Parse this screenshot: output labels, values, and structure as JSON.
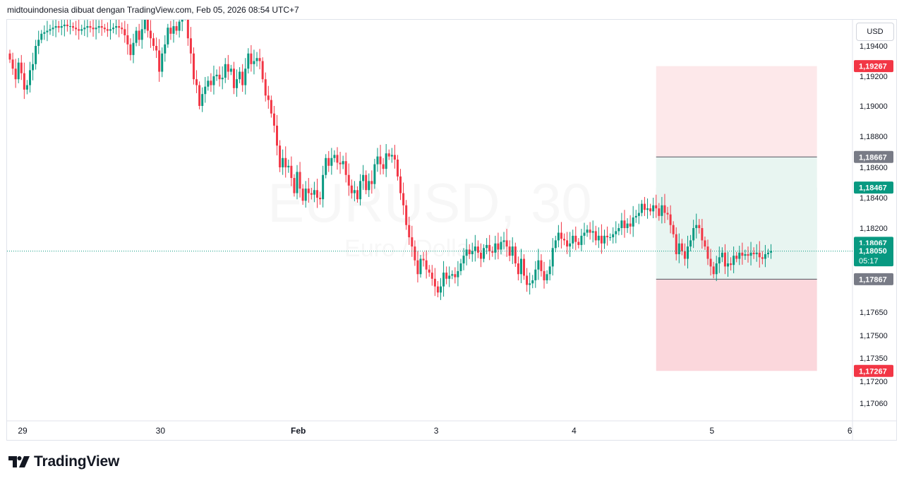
{
  "header": {
    "attribution": "midtouindonesia dibuat dengan TradingView.com, Feb 05, 2026 08:54 UTC+7"
  },
  "currency": "USD",
  "brand": {
    "name": "TradingView"
  },
  "colors": {
    "up": "#089981",
    "down": "#f23645",
    "grid": "#f0f3fa",
    "axis_text": "#131722"
  },
  "chart_data": {
    "type": "candlestick",
    "symbol": "EURUSD, 30",
    "watermark": {
      "title": "EURUSD, 30",
      "subtitle": "Euro / Dollar AS"
    },
    "y_axis": {
      "ticks": [
        1.194,
        1.192,
        1.19,
        1.188,
        1.186,
        1.184,
        1.182,
        1.1765,
        1.175,
        1.1735,
        1.172,
        1.1706
      ],
      "tick_labels": [
        "1,19400",
        "1,19200",
        "1,19000",
        "1,18800",
        "1,18600",
        "1,18400",
        "1,18200",
        "1,17650",
        "1,17500",
        "1,17350",
        "1,17200",
        "1,17060"
      ]
    },
    "x_axis": {
      "tick_labels": [
        "29",
        "30",
        "Feb",
        "3",
        "4",
        "5",
        "6"
      ],
      "tick_index": [
        0,
        48,
        96,
        144,
        192,
        240,
        288
      ]
    },
    "price_labels": [
      {
        "text": "1,19267",
        "value": 1.19267,
        "color": "#f23645"
      },
      {
        "text": "1,18667",
        "value": 1.18667,
        "color": "#787b86"
      },
      {
        "text": "1,18467",
        "value": 1.18467,
        "color": "#089981"
      },
      {
        "text": "1,18067",
        "value": 1.18067,
        "color": "#089981"
      },
      {
        "text": "1,18050",
        "value": 1.1805,
        "color": "#089981",
        "extra": "05:17"
      },
      {
        "text": "1,17867",
        "value": 1.17867,
        "color": "#787b86"
      },
      {
        "text": "1,17267",
        "value": 1.17267,
        "color": "#f23645"
      }
    ],
    "last_price": 1.1805,
    "countdown": "05:17",
    "zones": [
      {
        "name": "take-profit-2",
        "from": 1.18667,
        "to": 1.19267,
        "from_index": 225,
        "to_index": 281,
        "color": "#fde8ea"
      },
      {
        "name": "take-profit-1",
        "from": 1.18067,
        "to": 1.18467,
        "from_index": 225,
        "to_index": 281,
        "color": "#d3ede6"
      },
      {
        "name": "entry-band",
        "from": 1.17867,
        "to": 1.18667,
        "from_index": 225,
        "to_index": 281,
        "color": "#e8f5f1"
      },
      {
        "name": "stop-loss",
        "from": 1.17267,
        "to": 1.17867,
        "from_index": 225,
        "to_index": 281,
        "color": "#fbd7dc"
      }
    ],
    "levels": [
      {
        "value": 1.18667,
        "from_index": 225,
        "to_index": 281
      },
      {
        "value": 1.17867,
        "from_index": 225,
        "to_index": 281
      }
    ],
    "close": [
      1.1931,
      1.1925,
      1.1918,
      1.1929,
      1.1922,
      1.1911,
      1.1914,
      1.1924,
      1.1928,
      1.194,
      1.1944,
      1.1948,
      1.1949,
      1.195,
      1.1951,
      1.1952,
      1.1953,
      1.1952,
      1.1953,
      1.1954,
      1.1953,
      1.1953,
      1.1952,
      1.1951,
      1.195,
      1.1951,
      1.1952,
      1.1953,
      1.1952,
      1.1951,
      1.1952,
      1.1953,
      1.1952,
      1.1951,
      1.195,
      1.1951,
      1.1952,
      1.1953,
      1.1952,
      1.1951,
      1.1947,
      1.1941,
      1.1934,
      1.1942,
      1.195,
      1.1944,
      1.1951,
      1.1958,
      1.195,
      1.1945,
      1.194,
      1.1937,
      1.1923,
      1.1935,
      1.1941,
      1.1952,
      1.1948,
      1.1953,
      1.195,
      1.1956,
      1.196,
      1.1963,
      1.1945,
      1.1935,
      1.1918,
      1.1914,
      1.19,
      1.1908,
      1.1913,
      1.1917,
      1.1914,
      1.192,
      1.1921,
      1.1918,
      1.1919,
      1.1928,
      1.1923,
      1.1925,
      1.1912,
      1.1918,
      1.1923,
      1.1914,
      1.1925,
      1.1935,
      1.1928,
      1.193,
      1.1932,
      1.193,
      1.1918,
      1.1907,
      1.1904,
      1.1895,
      1.1887,
      1.1874,
      1.186,
      1.1866,
      1.186,
      1.1861,
      1.1853,
      1.1843,
      1.1857,
      1.1846,
      1.1838,
      1.1846,
      1.1843,
      1.1842,
      1.1845,
      1.184,
      1.1839,
      1.1855,
      1.1866,
      1.1861,
      1.1866,
      1.1868,
      1.1863,
      1.1862,
      1.1864,
      1.1855,
      1.1848,
      1.1843,
      1.1845,
      1.1839,
      1.1851,
      1.1855,
      1.1845,
      1.1851,
      1.1849,
      1.1862,
      1.1867,
      1.1862,
      1.1859,
      1.1869,
      1.1867,
      1.1868,
      1.1865,
      1.1854,
      1.1843,
      1.1835,
      1.1822,
      1.1814,
      1.1808,
      1.1799,
      1.179,
      1.18,
      1.1799,
      1.1793,
      1.1791,
      1.1787,
      1.1782,
      1.1778,
      1.1782,
      1.1791,
      1.1787,
      1.1789,
      1.179,
      1.1788,
      1.1792,
      1.1797,
      1.1802,
      1.1806,
      1.1803,
      1.1805,
      1.1808,
      1.1804,
      1.18,
      1.1807,
      1.1809,
      1.1805,
      1.1804,
      1.181,
      1.1806,
      1.1811,
      1.1812,
      1.1808,
      1.1802,
      1.1808,
      1.1797,
      1.179,
      1.18,
      1.1789,
      1.1783,
      1.1784,
      1.1786,
      1.1793,
      1.1799,
      1.1792,
      1.1786,
      1.179,
      1.1795,
      1.1807,
      1.1812,
      1.1817,
      1.1813,
      1.1812,
      1.1808,
      1.181,
      1.1815,
      1.1811,
      1.1809,
      1.1815,
      1.1817,
      1.1819,
      1.1817,
      1.1818,
      1.1812,
      1.1815,
      1.181,
      1.1815,
      1.1814,
      1.1814,
      1.1816,
      1.1818,
      1.182,
      1.1825,
      1.182,
      1.1823,
      1.1821,
      1.1827,
      1.1828,
      1.183,
      1.1836,
      1.1832,
      1.1833,
      1.1831,
      1.1835,
      1.1833,
      1.1828,
      1.1835,
      1.183,
      1.1829,
      1.1822,
      1.1816,
      1.1803,
      1.181,
      1.1805,
      1.18,
      1.1808,
      1.1812,
      1.182,
      1.1822,
      1.182,
      1.1812,
      1.1808,
      1.18,
      1.1795,
      1.179,
      1.1797,
      1.1801,
      1.1804,
      1.1795,
      1.1797,
      1.1796,
      1.1802,
      1.18,
      1.1804,
      1.1802,
      1.1803,
      1.1802,
      1.1804,
      1.1803,
      1.1804,
      1.1801,
      1.18,
      1.1803,
      1.1804,
      1.1805
    ]
  }
}
